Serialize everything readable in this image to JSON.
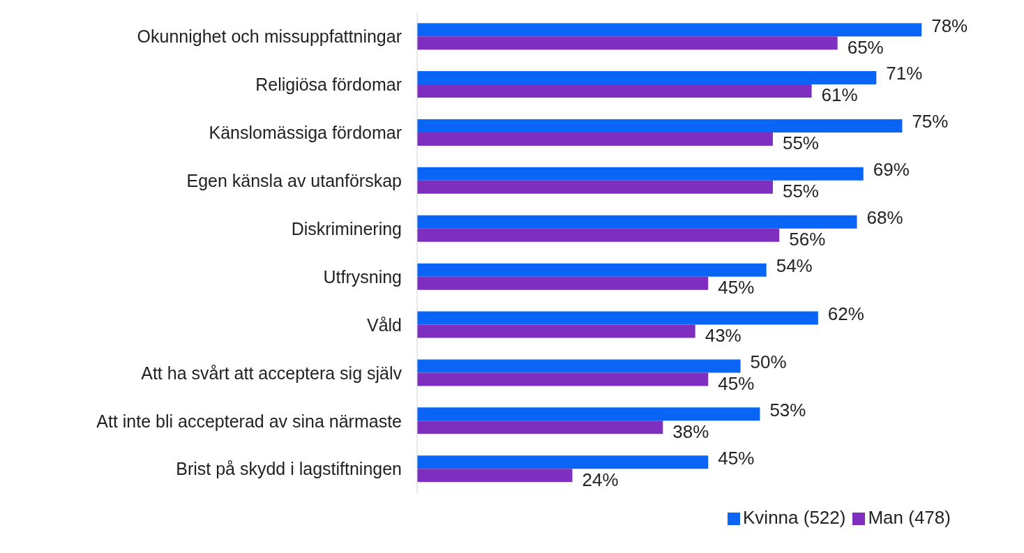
{
  "chart_data": {
    "type": "bar",
    "orientation": "horizontal",
    "legend": "bottom",
    "grid": false,
    "categories": [
      "Okunnighet och missuppfattningar",
      "Religiösa fördomar",
      "Känslomässiga fördomar",
      "Egen känsla av utanförskap",
      "Diskriminering",
      "Utfrysning",
      "Våld",
      "Att ha svårt att acceptera sig själv",
      "Att inte bli accepterad av sina närmaste",
      "Brist på skydd i lagstiftningen"
    ],
    "series": [
      {
        "name": "Kvinna (522)",
        "color": "#0a64f5",
        "values": [
          78,
          71,
          75,
          69,
          68,
          54,
          62,
          50,
          53,
          45
        ],
        "value_labels": [
          "78%",
          "71%",
          "75%",
          "69%",
          "68%",
          "54%",
          "62%",
          "50%",
          "53%",
          "45%"
        ]
      },
      {
        "name": "Man (478)",
        "color": "#7f2fbf",
        "values": [
          65,
          61,
          55,
          55,
          56,
          45,
          43,
          45,
          38,
          24
        ],
        "value_labels": [
          "65%",
          "61%",
          "55%",
          "55%",
          "56%",
          "45%",
          "43%",
          "45%",
          "38%",
          "24%"
        ]
      }
    ]
  }
}
